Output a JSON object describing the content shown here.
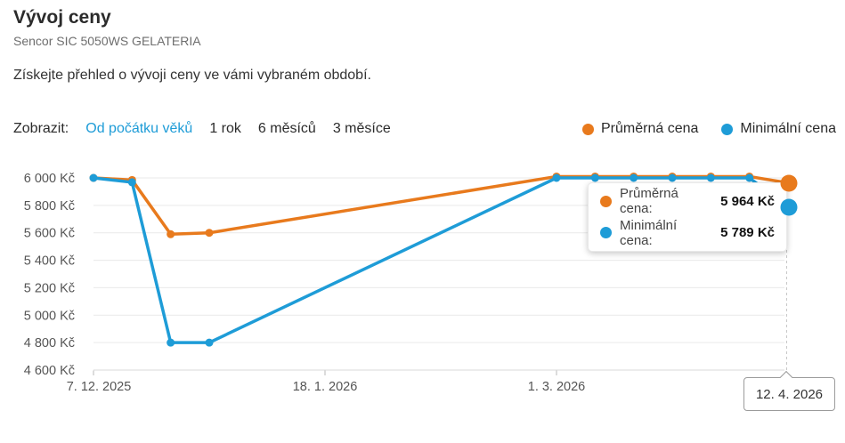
{
  "header": {
    "title": "Vývoj ceny",
    "subtitle": "Sencor SIC 5050WS GELATERIA",
    "description": "Získejte přehled o vývoji ceny ve vámi vybraném období."
  },
  "filter_bar": {
    "label": "Zobrazit:",
    "active_color": "#1e9cd7",
    "options": [
      {
        "label": "Od počátku věků",
        "active": true
      },
      {
        "label": "1 rok",
        "active": false
      },
      {
        "label": "6 měsíců",
        "active": false
      },
      {
        "label": "3 měsíce",
        "active": false
      }
    ]
  },
  "legend": {
    "items": [
      {
        "label": "Průměrná cena",
        "color": "#e87a1d"
      },
      {
        "label": "Minimální cena",
        "color": "#1e9cd7"
      }
    ]
  },
  "tooltip": {
    "rows": [
      {
        "label": "Průměrná cena:",
        "value": "5 964 Kč",
        "color": "#e87a1d"
      },
      {
        "label": "Minimální cena:",
        "value": "5 789 Kč",
        "color": "#1e9cd7"
      }
    ]
  },
  "chart_data": {
    "type": "line",
    "grid": true,
    "legend_position": "top-right",
    "currency": "Kč",
    "y_axis": {
      "min": 4600,
      "max": 6000,
      "ticks": [
        {
          "value": 6000,
          "label": "6 000 Kč"
        },
        {
          "value": 5800,
          "label": "5 800 Kč"
        },
        {
          "value": 5600,
          "label": "5 600 Kč"
        },
        {
          "value": 5400,
          "label": "5 400 Kč"
        },
        {
          "value": 5200,
          "label": "5 200 Kč"
        },
        {
          "value": 5000,
          "label": "5 000 Kč"
        },
        {
          "value": 4800,
          "label": "4 800 Kč"
        },
        {
          "value": 4600,
          "label": "4 600 Kč"
        }
      ]
    },
    "x_axis": {
      "unit": "days",
      "range": [
        0,
        126
      ],
      "ticks": [
        {
          "day": 0,
          "label": "7. 12. 2025"
        },
        {
          "day": 42,
          "label": "18. 1. 2026"
        },
        {
          "day": 84,
          "label": "1. 3. 2026"
        }
      ]
    },
    "hover": {
      "day": 126,
      "date": "12. 4. 2026"
    },
    "series": [
      {
        "name": "Průměrná cena",
        "color": "#e87a1d",
        "points": [
          {
            "date": "7. 12. 2025",
            "day": 0,
            "value": 6000
          },
          {
            "date": "14. 12. 2025",
            "day": 7,
            "value": 5985
          },
          {
            "date": "21. 12. 2025",
            "day": 14,
            "value": 5590
          },
          {
            "date": "28. 12. 2025",
            "day": 21,
            "value": 5600
          },
          {
            "date": "1. 3. 2026",
            "day": 84,
            "value": 6010
          },
          {
            "date": "8. 3. 2026",
            "day": 91,
            "value": 6010
          },
          {
            "date": "15. 3. 2026",
            "day": 98,
            "value": 6010
          },
          {
            "date": "22. 3. 2026",
            "day": 105,
            "value": 6010
          },
          {
            "date": "29. 3. 2026",
            "day": 112,
            "value": 6010
          },
          {
            "date": "5. 4. 2026",
            "day": 119,
            "value": 6010
          },
          {
            "date": "12. 4. 2026",
            "day": 126,
            "value": 5964
          }
        ]
      },
      {
        "name": "Minimální cena",
        "color": "#1e9cd7",
        "points": [
          {
            "date": "7. 12. 2025",
            "day": 0,
            "value": 6000
          },
          {
            "date": "14. 12. 2025",
            "day": 7,
            "value": 5968
          },
          {
            "date": "21. 12. 2025",
            "day": 14,
            "value": 4800
          },
          {
            "date": "28. 12. 2025",
            "day": 21,
            "value": 4800
          },
          {
            "date": "1. 3. 2026",
            "day": 84,
            "value": 6000
          },
          {
            "date": "8. 3. 2026",
            "day": 91,
            "value": 6000
          },
          {
            "date": "15. 3. 2026",
            "day": 98,
            "value": 6000
          },
          {
            "date": "22. 3. 2026",
            "day": 105,
            "value": 6000
          },
          {
            "date": "29. 3. 2026",
            "day": 112,
            "value": 6000
          },
          {
            "date": "5. 4. 2026",
            "day": 119,
            "value": 6000
          },
          {
            "date": "12. 4. 2026",
            "day": 126,
            "value": 5789
          }
        ]
      }
    ]
  }
}
